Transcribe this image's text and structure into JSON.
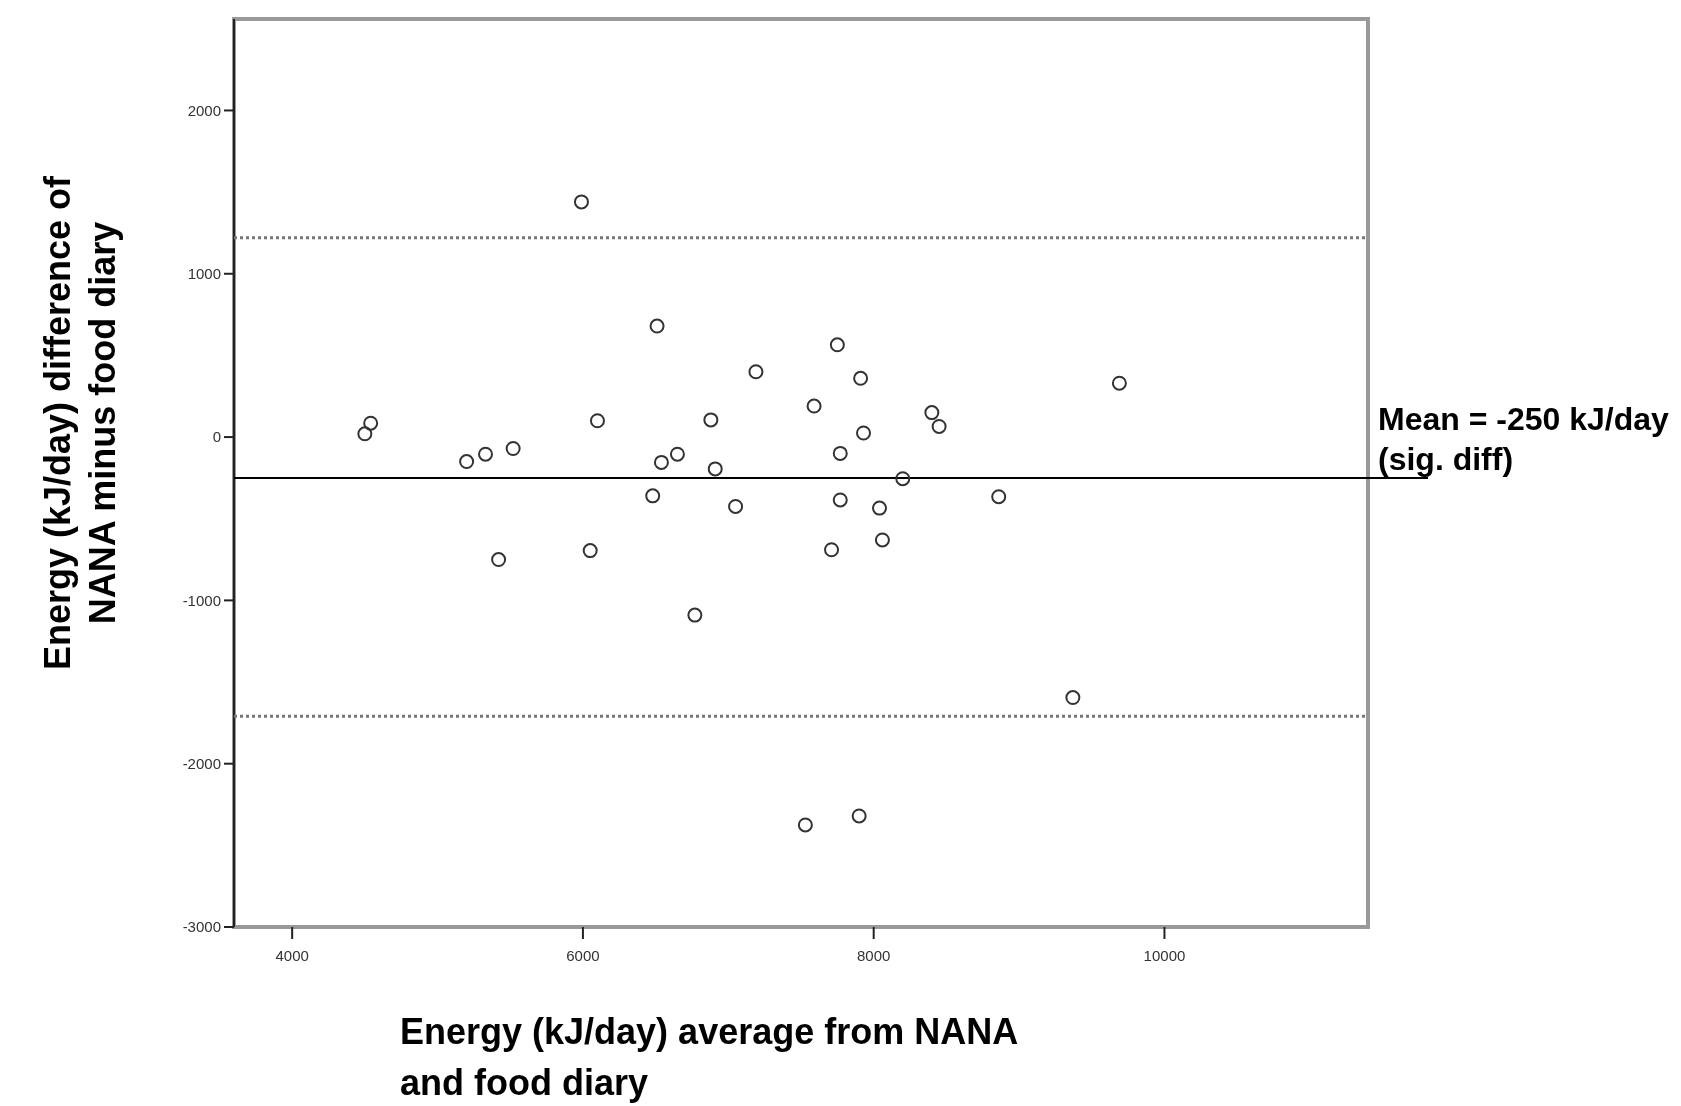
{
  "chart_data": {
    "type": "scatter",
    "xlabel": "Energy (kJ/day) average from NANA\nand food diary",
    "ylabel": "Energy (kJ/day) difference of\nNANA minus food diary",
    "xlim": [
      3600,
      11400
    ],
    "xticks": [
      4000,
      6000,
      8000,
      10000
    ],
    "ylim": [
      -3000,
      2560
    ],
    "yticks": [
      -3000,
      -2000,
      -1000,
      0,
      1000,
      2000
    ],
    "marker": "circle",
    "grid": false,
    "series": [
      {
        "color": "#333333",
        "x": [
          4500,
          4540,
          5200,
          5330,
          5520,
          5420,
          5990,
          6100,
          6050,
          6480,
          6510,
          6540,
          6650,
          6880,
          6910,
          6770,
          7050,
          7190,
          7590,
          7750,
          7910,
          7770,
          7930,
          7770,
          7710,
          8040,
          8060,
          8200,
          8400,
          8450,
          8860,
          9690,
          9370,
          7530,
          7900
        ],
        "values": [
          20,
          85,
          -150,
          -105,
          -70,
          -750,
          1440,
          100,
          -695,
          -360,
          680,
          -155,
          -105,
          105,
          -195,
          -1090,
          -425,
          400,
          190,
          565,
          360,
          -100,
          25,
          -385,
          -690,
          -435,
          -630,
          -255,
          150,
          65,
          -365,
          330,
          -1595,
          -2375,
          -2320
        ]
      }
    ],
    "ref_lines": [
      {
        "axis": "y",
        "value": 1220,
        "line_style": "dotted",
        "color": "#777777"
      },
      {
        "axis": "y",
        "value": -250,
        "line_style": "solid",
        "color": "#000000",
        "label": "Mean = -250 kJ/day\n(sig. diff)"
      },
      {
        "axis": "y",
        "value": -1710,
        "line_style": "dotted",
        "color": "#777777"
      }
    ]
  }
}
